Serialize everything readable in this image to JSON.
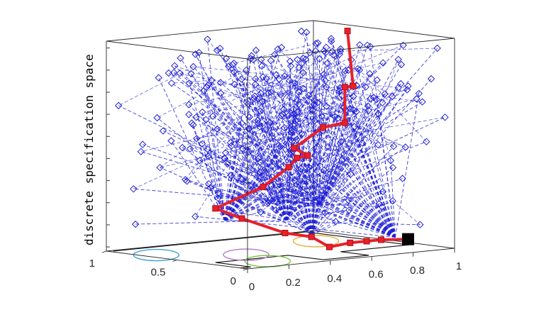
{
  "chart_data": {
    "type": "scatter",
    "subtype": "3d-line-scatter",
    "title": "",
    "xlabel": "",
    "ylabel": "",
    "zlabel": "discrete specification space",
    "x_ticks": [
      "0",
      "0.2",
      "0.4",
      "0.6",
      "0.8",
      "1"
    ],
    "y_ticks": [
      "0",
      "0.5",
      "1"
    ],
    "z_ticks_shown": false,
    "xlim": [
      0,
      1
    ],
    "ylim": [
      0,
      1
    ],
    "grid": false,
    "legend": "none",
    "floor_regions": [
      {
        "shape": "ellipse",
        "color": "#3ba3d6",
        "label": ""
      },
      {
        "shape": "ellipse",
        "color": "#e3b03c",
        "label": ""
      },
      {
        "shape": "ellipse",
        "color": "#7dc242",
        "label": ""
      },
      {
        "shape": "ellipse",
        "color": "#b07ac8",
        "label": ""
      }
    ],
    "series": [
      {
        "role": "explored tree (dashed, diamond markers)",
        "color": "#1f1fd6",
        "marker": "diamond",
        "line": "dashed"
      },
      {
        "role": "found path (solid, square markers)",
        "color": "#e8202a",
        "marker": "square",
        "line": "solid",
        "start_marker": "black square"
      }
    ]
  }
}
